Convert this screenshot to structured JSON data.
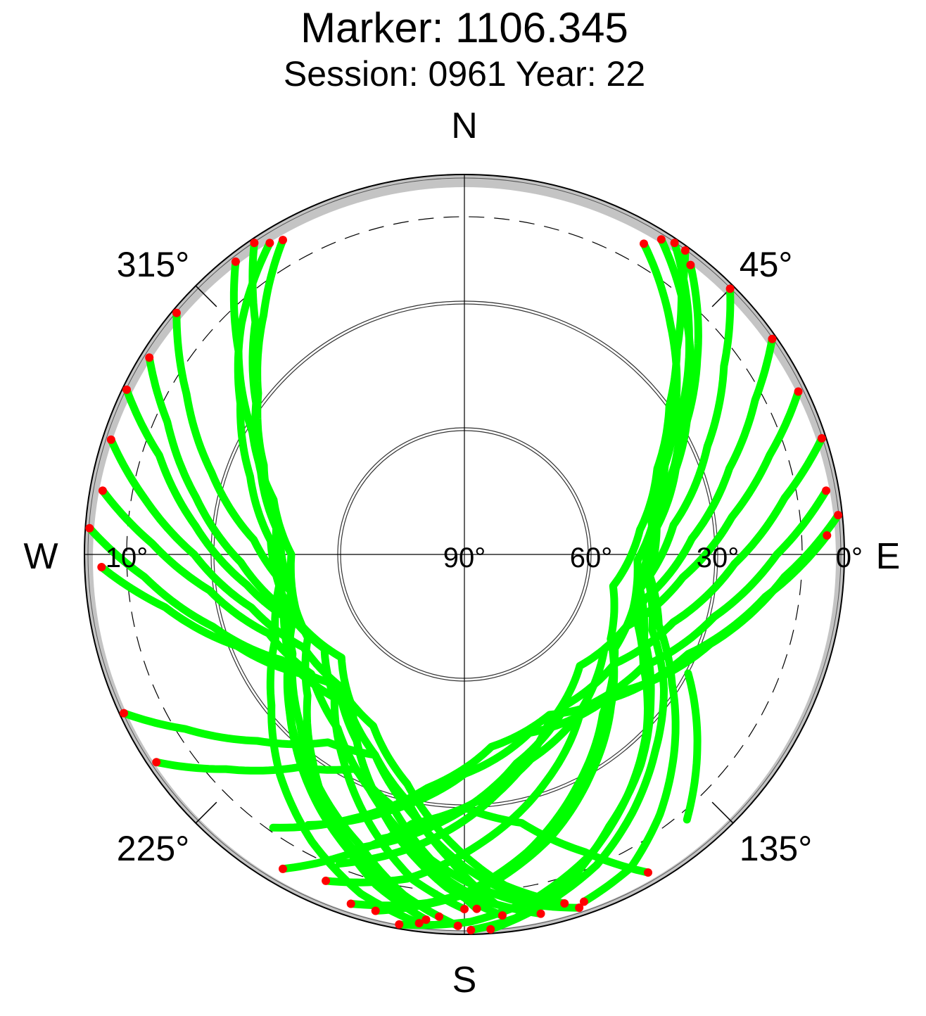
{
  "chart_data": {
    "type": "polar-skyplot",
    "title": "Marker: 1106.345",
    "subtitle": "Session: 0961 Year: 22",
    "directions": {
      "north": "N",
      "east": "E",
      "south": "S",
      "west": "W"
    },
    "azimuth_labels": [
      {
        "azimuth": 45,
        "label": "45°"
      },
      {
        "azimuth": 135,
        "label": "135°"
      },
      {
        "azimuth": 225,
        "label": "225°"
      },
      {
        "azimuth": 315,
        "label": "315°"
      }
    ],
    "elevation_labels": [
      {
        "elevation": 0,
        "label": "0°"
      },
      {
        "elevation": 30,
        "label": "30°"
      },
      {
        "elevation": 60,
        "label": "60°"
      },
      {
        "elevation": 90,
        "label": "90°"
      },
      {
        "elevation": 10,
        "label": "10°",
        "side": "west"
      }
    ],
    "elevation_circles": [
      30,
      60
    ],
    "cutoff_elevation": 10,
    "azimuth_ticks": [
      45,
      135,
      225,
      315
    ],
    "colors": {
      "track": "#00ff00",
      "endpoint": "#ff0000",
      "horizon_mask": "#c4c4c4",
      "axes": "#000000"
    },
    "tracks": [
      {
        "az": [
          34,
          46,
          57,
          70,
          85,
          100,
          115,
          128,
          140,
          152,
          163,
          172,
          179
        ],
        "el": [
          1,
          16,
          29,
          38,
          46,
          48,
          43,
          34,
          25,
          17,
          8,
          3,
          1
        ]
      },
      {
        "az": [
          32,
          44,
          56,
          68,
          82,
          98,
          112,
          124,
          136,
          147,
          157,
          167,
          176
        ],
        "el": [
          2,
          14,
          26,
          36,
          44,
          46,
          42,
          33,
          25,
          17,
          10,
          5,
          1
        ]
      },
      {
        "az": [
          38,
          50,
          62,
          76,
          92,
          108,
          122,
          134,
          146,
          157,
          168,
          179,
          190
        ],
        "el": [
          3,
          18,
          32,
          43,
          49,
          48,
          40,
          30,
          21,
          13,
          7,
          3,
          1
        ]
      },
      {
        "az": [
          30,
          42,
          54,
          66,
          80,
          96,
          110,
          122,
          133,
          143,
          152,
          161
        ],
        "el": [
          5,
          17,
          28,
          38,
          45,
          46,
          41,
          32,
          22,
          13,
          6,
          3
        ]
      },
      {
        "az": [
          36,
          40,
          46,
          54,
          66,
          82,
          102,
          120,
          136,
          150,
          163,
          175,
          186,
          198
        ],
        "el": [
          1,
          10,
          20,
          30,
          40,
          48,
          54,
          50,
          40,
          30,
          20,
          12,
          7,
          3
        ]
      },
      {
        "az": [
          45,
          54,
          66,
          82,
          102,
          122,
          139,
          154,
          168,
          181,
          194
        ],
        "el": [
          1,
          14,
          27,
          40,
          48,
          48,
          40,
          29,
          18,
          9,
          3
        ]
      },
      {
        "az": [
          55,
          62,
          72,
          86,
          104,
          124,
          143,
          160,
          176,
          190,
          203
        ],
        "el": [
          1,
          12,
          24,
          36,
          46,
          50,
          44,
          33,
          22,
          12,
          6
        ]
      },
      {
        "az": [
          64,
          72,
          82,
          96,
          114,
          134,
          154,
          172,
          188,
          202
        ],
        "el": [
          2,
          14,
          26,
          38,
          48,
          52,
          45,
          33,
          21,
          11
        ]
      },
      {
        "az": [
          72,
          80,
          92,
          108,
          126,
          146,
          166,
          184,
          200
        ],
        "el": [
          1,
          13,
          26,
          38,
          46,
          47,
          39,
          27,
          16
        ]
      },
      {
        "az": [
          80,
          90,
          104,
          122,
          142,
          162,
          180,
          196
        ],
        "el": [
          3,
          16,
          29,
          40,
          44,
          39,
          30,
          20
        ]
      },
      {
        "az": [
          84,
          94,
          110,
          130,
          152,
          172,
          189,
          203,
          215
        ],
        "el": [
          1,
          14,
          28,
          40,
          47,
          44,
          34,
          22,
          11
        ]
      },
      {
        "az": [
          87,
          98,
          114,
          136,
          160,
          180,
          196,
          210
        ],
        "el": [
          4,
          18,
          32,
          42,
          45,
          38,
          27,
          16
        ]
      },
      {
        "az": [
          326,
          318,
          306,
          292,
          276,
          258,
          240,
          224,
          212,
          200,
          190,
          181
        ],
        "el": [
          1,
          16,
          29,
          38,
          46,
          48,
          43,
          34,
          25,
          17,
          8,
          2
        ]
      },
      {
        "az": [
          328,
          316,
          304,
          290,
          274,
          256,
          240,
          226,
          214,
          203,
          193,
          184
        ],
        "el": [
          3,
          14,
          26,
          36,
          44,
          46,
          42,
          33,
          25,
          17,
          10,
          4
        ]
      },
      {
        "az": [
          322,
          312,
          300,
          286,
          270,
          252,
          236,
          222,
          210,
          199,
          190
        ],
        "el": [
          2,
          18,
          32,
          43,
          49,
          48,
          40,
          30,
          21,
          13,
          7
        ]
      },
      {
        "az": [
          330,
          320,
          308,
          294,
          278,
          262,
          246,
          232,
          220,
          208,
          197,
          187
        ],
        "el": [
          4,
          16,
          28,
          38,
          45,
          46,
          41,
          32,
          22,
          13,
          6,
          2
        ]
      },
      {
        "az": [
          310,
          300,
          288,
          274,
          258,
          242,
          228,
          216,
          205,
          195,
          186
        ],
        "el": [
          1,
          14,
          27,
          40,
          48,
          48,
          40,
          29,
          18,
          9,
          3
        ]
      },
      {
        "az": [
          302,
          294,
          282,
          268,
          252,
          236,
          222,
          210,
          199,
          189,
          180
        ],
        "el": [
          2,
          13,
          25,
          37,
          46,
          50,
          44,
          33,
          22,
          12,
          6
        ]
      },
      {
        "az": [
          296,
          288,
          276,
          262,
          246,
          230,
          216,
          204,
          193,
          183,
          174
        ],
        "el": [
          1,
          14,
          26,
          38,
          48,
          52,
          45,
          33,
          21,
          11,
          4
        ]
      },
      {
        "az": [
          288,
          280,
          270,
          256,
          240,
          224,
          210,
          198,
          187,
          177,
          168
        ],
        "el": [
          2,
          13,
          26,
          38,
          46,
          47,
          39,
          27,
          16,
          8,
          3
        ]
      },
      {
        "az": [
          280,
          272,
          262,
          248,
          232,
          216,
          202,
          190,
          179,
          170,
          162
        ],
        "el": [
          3,
          16,
          29,
          40,
          44,
          39,
          30,
          20,
          12,
          6,
          2
        ]
      },
      {
        "az": [
          274,
          266,
          254,
          240,
          224,
          208,
          194,
          183,
          173,
          164
        ],
        "el": [
          1,
          14,
          28,
          40,
          47,
          44,
          34,
          22,
          11,
          4
        ]
      },
      {
        "az": [
          268,
          260,
          248,
          234,
          218,
          204,
          191,
          180,
          170
        ],
        "el": [
          4,
          18,
          32,
          42,
          45,
          38,
          27,
          16,
          7
        ]
      },
      {
        "az": [
          245,
          238,
          228,
          216,
          204,
          193,
          183,
          175
        ],
        "el": [
          1,
          12,
          24,
          35,
          38,
          30,
          18,
          7
        ]
      },
      {
        "az": [
          236,
          228,
          218,
          207,
          196,
          186,
          178
        ],
        "el": [
          2,
          14,
          26,
          33,
          28,
          17,
          6
        ]
      },
      {
        "az": [
          150,
          158,
          168,
          180,
          191,
          201,
          210
        ],
        "el": [
          3,
          14,
          25,
          30,
          25,
          14,
          4
        ]
      },
      {
        "az": [
          140,
          132,
          124,
          118
        ],
        "el": [
          8,
          16,
          24,
          30
        ]
      }
    ]
  }
}
